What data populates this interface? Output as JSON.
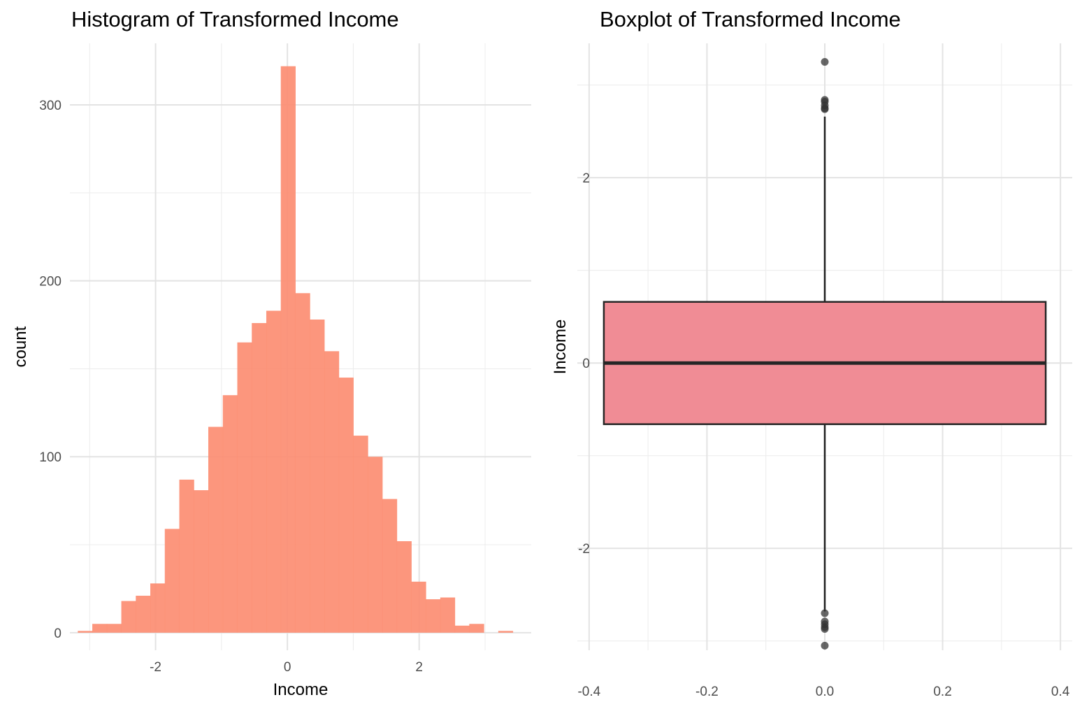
{
  "chart_data": [
    {
      "type": "histogram",
      "title": "Histogram of Transformed Income",
      "xlabel": "Income",
      "ylabel": "count",
      "xlim": [
        -3.3,
        3.7
      ],
      "ylim": [
        -10,
        335
      ],
      "x_ticks": [
        -2,
        0,
        2
      ],
      "x_tick_labels": [
        "-2",
        "0",
        "2"
      ],
      "y_ticks": [
        0,
        100,
        200,
        300
      ],
      "y_tick_labels": [
        "0",
        "100",
        "200",
        "300"
      ],
      "bin_width": 0.22,
      "bins": [
        {
          "x0": -3.18,
          "count": 1
        },
        {
          "x0": -2.96,
          "count": 5
        },
        {
          "x0": -2.74,
          "count": 5
        },
        {
          "x0": -2.52,
          "count": 18
        },
        {
          "x0": -2.3,
          "count": 21
        },
        {
          "x0": -2.08,
          "count": 28
        },
        {
          "x0": -1.86,
          "count": 59
        },
        {
          "x0": -1.64,
          "count": 87
        },
        {
          "x0": -1.42,
          "count": 81
        },
        {
          "x0": -1.2,
          "count": 117
        },
        {
          "x0": -0.98,
          "count": 135
        },
        {
          "x0": -0.76,
          "count": 165
        },
        {
          "x0": -0.54,
          "count": 176
        },
        {
          "x0": -0.32,
          "count": 183
        },
        {
          "x0": -0.1,
          "count": 322
        },
        {
          "x0": 0.12,
          "count": 193
        },
        {
          "x0": 0.34,
          "count": 178
        },
        {
          "x0": 0.56,
          "count": 160
        },
        {
          "x0": 0.78,
          "count": 145
        },
        {
          "x0": 1.0,
          "count": 112
        },
        {
          "x0": 1.22,
          "count": 100
        },
        {
          "x0": 1.44,
          "count": 76
        },
        {
          "x0": 1.66,
          "count": 52
        },
        {
          "x0": 1.88,
          "count": 29
        },
        {
          "x0": 2.1,
          "count": 19
        },
        {
          "x0": 2.32,
          "count": 20
        },
        {
          "x0": 2.54,
          "count": 4
        },
        {
          "x0": 2.76,
          "count": 5
        },
        {
          "x0": 2.98,
          "count": 0
        },
        {
          "x0": 3.2,
          "count": 1
        }
      ],
      "fill_color": "#fc8d72",
      "grid": true,
      "legend": "none"
    },
    {
      "type": "boxplot",
      "title": "Boxplot of Transformed Income",
      "xlabel": "",
      "ylabel": "Income",
      "xlim": [
        -0.42,
        0.42
      ],
      "ylim": [
        -3.1,
        3.45
      ],
      "x_ticks": [
        -0.4,
        -0.2,
        0.0,
        0.2,
        0.4
      ],
      "x_tick_labels": [
        "-0.4",
        "-0.2",
        "0.0",
        "0.2",
        "0.4"
      ],
      "y_ticks": [
        -2,
        0,
        2
      ],
      "y_tick_labels": [
        "-2",
        "0",
        "2"
      ],
      "box": {
        "x": 0.0,
        "width": 0.75,
        "q1": -0.66,
        "median": 0.0,
        "q3": 0.66,
        "whisker_low": -2.68,
        "whisker_high": 2.66
      },
      "outliers": [
        3.25,
        2.84,
        2.82,
        2.78,
        2.75,
        2.74,
        -2.7,
        -2.79,
        -2.82,
        -2.85,
        -2.87,
        -3.05
      ],
      "fill_color": "#f08c95",
      "grid": true,
      "legend": "none"
    }
  ]
}
